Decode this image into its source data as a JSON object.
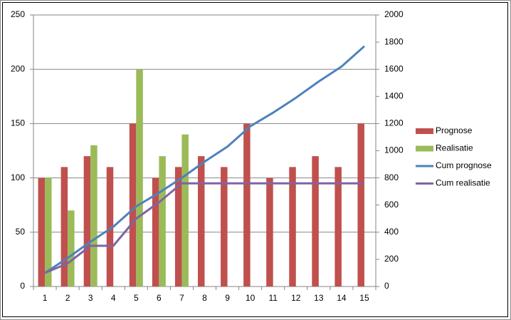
{
  "chart_data": {
    "type": "bar-line",
    "categories": [
      "1",
      "2",
      "3",
      "4",
      "5",
      "6",
      "7",
      "8",
      "9",
      "10",
      "11",
      "12",
      "13",
      "14",
      "15"
    ],
    "series": [
      {
        "name": "Prognose",
        "type": "bar",
        "color": "#c0504d",
        "values": [
          100,
          110,
          120,
          110,
          150,
          100,
          110,
          120,
          110,
          150,
          100,
          110,
          120,
          110,
          150
        ]
      },
      {
        "name": "Realisatie",
        "type": "bar",
        "color": "#9bbb59",
        "values": [
          100,
          70,
          130,
          null,
          200,
          120,
          140,
          null,
          null,
          null,
          null,
          null,
          null,
          null,
          null
        ]
      },
      {
        "name": "Cum prognose",
        "type": "line",
        "axis": "y2",
        "color": "#4f81bd",
        "values": [
          100,
          210,
          330,
          440,
          590,
          690,
          800,
          920,
          1030,
          1180,
          1280,
          1390,
          1510,
          1620,
          1770
        ]
      },
      {
        "name": "Cum realisatie",
        "type": "line",
        "axis": "y2",
        "color": "#8064a2",
        "values": [
          100,
          170,
          300,
          300,
          500,
          620,
          760,
          760,
          760,
          760,
          760,
          760,
          760,
          760,
          760
        ]
      }
    ],
    "ylim": [
      0,
      250
    ],
    "yticks": [
      0,
      50,
      100,
      150,
      200,
      250
    ],
    "y2lim": [
      0,
      2000
    ],
    "y2ticks": [
      0,
      200,
      400,
      600,
      800,
      1000,
      1200,
      1400,
      1600,
      1800,
      2000
    ],
    "grid": true,
    "legend": "right"
  }
}
